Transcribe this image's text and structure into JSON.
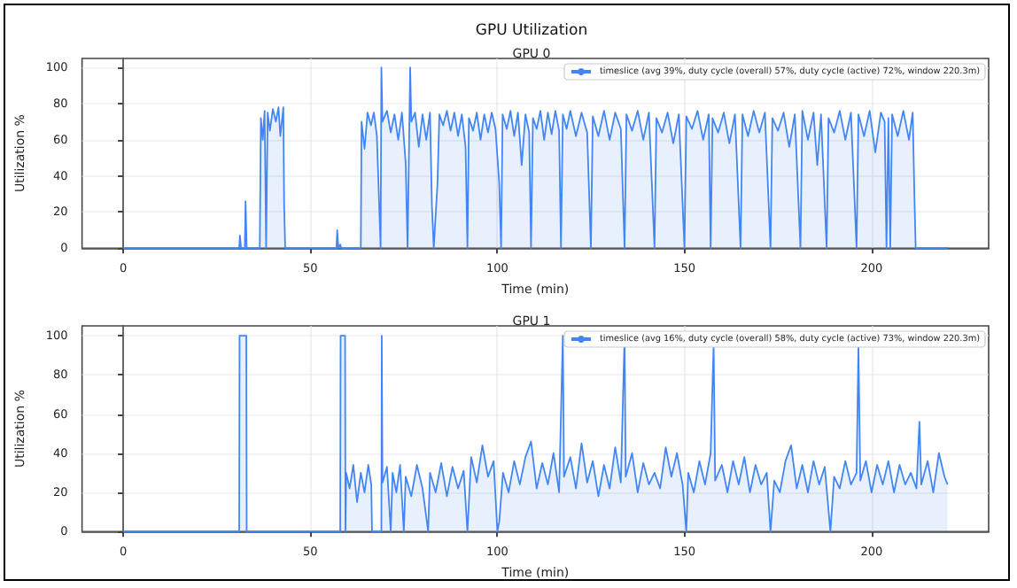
{
  "chart_data": [
    {
      "type": "area",
      "title": "GPU 0",
      "annotations": [
        "GPU Utilization"
      ],
      "xlabel": "Time (min)",
      "ylabel": "Utilization %",
      "xlim": [
        -11,
        231.3
      ],
      "xticks": [
        0,
        50,
        100,
        150,
        200
      ],
      "ylim": [
        0,
        105
      ],
      "yticks": [
        0,
        20,
        40,
        60,
        80,
        100
      ],
      "grid": true,
      "legend": "top right",
      "marker": "none",
      "line_style": "solid",
      "series": [
        {
          "name": "timeslice (avg 39%, duty cycle (overall) 57%, duty cycle (active) 72%, window 220.3m)",
          "color": "#4285f4",
          "x": [
            0,
            31,
            31.2,
            31.5,
            32.5,
            32.7,
            33,
            36.5,
            36.8,
            37.3,
            37.8,
            38.2,
            38.6,
            39.2,
            40,
            40.8,
            41.5,
            42,
            42.8,
            43,
            43.3,
            57,
            57.2,
            57.5,
            58,
            58.3,
            63.5,
            63.7,
            64.5,
            65.3,
            66.2,
            67,
            67.8,
            68.8,
            69,
            69.3,
            70.5,
            71.5,
            72.5,
            73.5,
            74.5,
            75.5,
            76,
            76.7,
            77,
            78,
            79,
            80,
            81,
            82,
            82.5,
            83,
            84,
            84.5,
            85.5,
            86.5,
            87.5,
            88.5,
            89.5,
            90.5,
            91.5,
            92,
            92.4,
            93.5,
            94.5,
            95.5,
            96.5,
            97.5,
            98.5,
            99.5,
            100.5,
            101,
            101.4,
            102.5,
            103.5,
            104.5,
            105.5,
            106.5,
            107.5,
            108.5,
            109,
            109.5,
            110.5,
            111.5,
            112.5,
            113.5,
            114.5,
            115.5,
            116.5,
            117,
            117.5,
            118.5,
            119.5,
            121,
            122.5,
            124,
            125,
            125.5,
            127,
            128.5,
            130,
            131.5,
            133,
            134,
            134.5,
            136,
            137.5,
            139,
            140.5,
            142,
            142.5,
            144,
            145.5,
            147,
            148.5,
            150,
            150.5,
            152,
            153.5,
            155,
            156.5,
            157,
            157.5,
            159,
            160.5,
            162,
            163.5,
            165,
            165.5,
            167,
            168.5,
            170,
            171.5,
            173,
            173.5,
            175,
            176.5,
            178,
            179.5,
            181,
            181.5,
            183,
            184.5,
            185.5,
            186.5,
            188,
            188.5,
            190,
            191.5,
            193,
            194.5,
            196,
            196.5,
            198,
            199.5,
            201,
            202.5,
            203.5,
            204,
            204.5,
            205,
            205.5,
            207,
            208.5,
            210,
            211,
            211.5,
            211.8,
            220.3
          ],
          "values": [
            0,
            0,
            7,
            0,
            0,
            26,
            0,
            0,
            72,
            60,
            76,
            0,
            75,
            65,
            77,
            70,
            78,
            62,
            78,
            25,
            0,
            0,
            10,
            0,
            2,
            0,
            0,
            70,
            55,
            75,
            68,
            75,
            62,
            0,
            100,
            70,
            76,
            64,
            74,
            60,
            75,
            47,
            0,
            100,
            70,
            75,
            56,
            74,
            60,
            75,
            24,
            0,
            36,
            74,
            68,
            76,
            65,
            75,
            62,
            74,
            56,
            0,
            72,
            65,
            75,
            60,
            74,
            64,
            75,
            66,
            36,
            0,
            74,
            66,
            76,
            62,
            75,
            46,
            74,
            64,
            0,
            72,
            66,
            76,
            60,
            75,
            63,
            76,
            65,
            0,
            74,
            66,
            76,
            62,
            75,
            64,
            0,
            73,
            62,
            76,
            60,
            75,
            66,
            0,
            74,
            65,
            76,
            60,
            75,
            0,
            72,
            64,
            75,
            58,
            74,
            0,
            73,
            66,
            76,
            60,
            74,
            0,
            72,
            64,
            75,
            58,
            74,
            0,
            74,
            62,
            76,
            64,
            75,
            0,
            72,
            65,
            75,
            56,
            74,
            0,
            76,
            60,
            75,
            46,
            74,
            0,
            72,
            64,
            76,
            60,
            75,
            0,
            74,
            62,
            76,
            53,
            75,
            70,
            0,
            72,
            0,
            74,
            62,
            76,
            60,
            75,
            25,
            0,
            0
          ]
        }
      ]
    },
    {
      "type": "area",
      "title": "GPU 1",
      "xlabel": "Time (min)",
      "ylabel": "Utilization %",
      "xlim": [
        -11,
        231.3
      ],
      "xticks": [
        0,
        50,
        100,
        150,
        200
      ],
      "ylim": [
        0,
        105
      ],
      "yticks": [
        0,
        20,
        40,
        60,
        80,
        100
      ],
      "grid": true,
      "legend": "top right",
      "marker": "none",
      "line_style": "solid",
      "series": [
        {
          "name": "timeslice (avg 16%, duty cycle (overall) 58%, duty cycle (active) 73%, window 220.3m)",
          "color": "#4285f4",
          "x": [
            0,
            31,
            31.1,
            32.9,
            33,
            58,
            58.1,
            59.3,
            59.4,
            59.6,
            60.5,
            61.5,
            62.5,
            63.5,
            64.5,
            65.5,
            66.3,
            66.5,
            69,
            69.1,
            69.3,
            70.5,
            71.5,
            72,
            73,
            74,
            75,
            75.5,
            77,
            78.5,
            80,
            81.5,
            82,
            83.5,
            85,
            86.5,
            88,
            89.5,
            91,
            92,
            93,
            94.5,
            96,
            97.5,
            99,
            100,
            100.5,
            101.5,
            103,
            104.5,
            106,
            107.5,
            109,
            110.5,
            112,
            113.5,
            115,
            116.5,
            117.5,
            117.8,
            119.5,
            121,
            122.5,
            124,
            125.5,
            127,
            128.5,
            130,
            131.5,
            133,
            134,
            134.3,
            136,
            137.5,
            139,
            140.5,
            142,
            143.5,
            145,
            146.5,
            148,
            149.5,
            150.5,
            151,
            152.5,
            154,
            155.5,
            157,
            157.8,
            158.2,
            160,
            161.5,
            163,
            164.5,
            166,
            167.5,
            169,
            170.5,
            172,
            173,
            174,
            175.5,
            177,
            178.5,
            180,
            181.5,
            183,
            184.5,
            186,
            187.5,
            189,
            190,
            191.5,
            193,
            194.5,
            196,
            196.5,
            197,
            198.5,
            200,
            201.5,
            203,
            204.5,
            206,
            207.5,
            209,
            210.5,
            212,
            212.8,
            213.3,
            215,
            216.5,
            218,
            219.5,
            220.3
          ],
          "values": [
            0,
            0,
            100,
            100,
            0,
            0,
            100,
            100,
            0,
            30,
            22,
            34,
            15,
            30,
            20,
            34,
            24,
            0,
            0,
            100,
            25,
            33,
            0,
            30,
            20,
            34,
            0,
            28,
            18,
            34,
            22,
            0,
            30,
            20,
            35,
            18,
            33,
            22,
            31,
            0,
            38,
            25,
            44,
            28,
            36,
            0,
            5,
            30,
            20,
            36,
            24,
            38,
            46,
            22,
            35,
            24,
            40,
            20,
            100,
            28,
            38,
            22,
            45,
            25,
            36,
            18,
            34,
            22,
            43,
            25,
            100,
            28,
            40,
            20,
            35,
            24,
            30,
            22,
            43,
            28,
            40,
            24,
            0,
            30,
            20,
            36,
            24,
            40,
            96,
            26,
            34,
            20,
            36,
            24,
            38,
            20,
            34,
            24,
            30,
            0,
            26,
            20,
            36,
            44,
            22,
            34,
            20,
            36,
            24,
            33,
            0,
            28,
            22,
            36,
            24,
            30,
            95,
            26,
            36,
            20,
            34,
            24,
            36,
            20,
            34,
            24,
            30,
            22,
            56,
            24,
            36,
            20,
            40,
            28,
            24
          ]
        }
      ]
    }
  ]
}
